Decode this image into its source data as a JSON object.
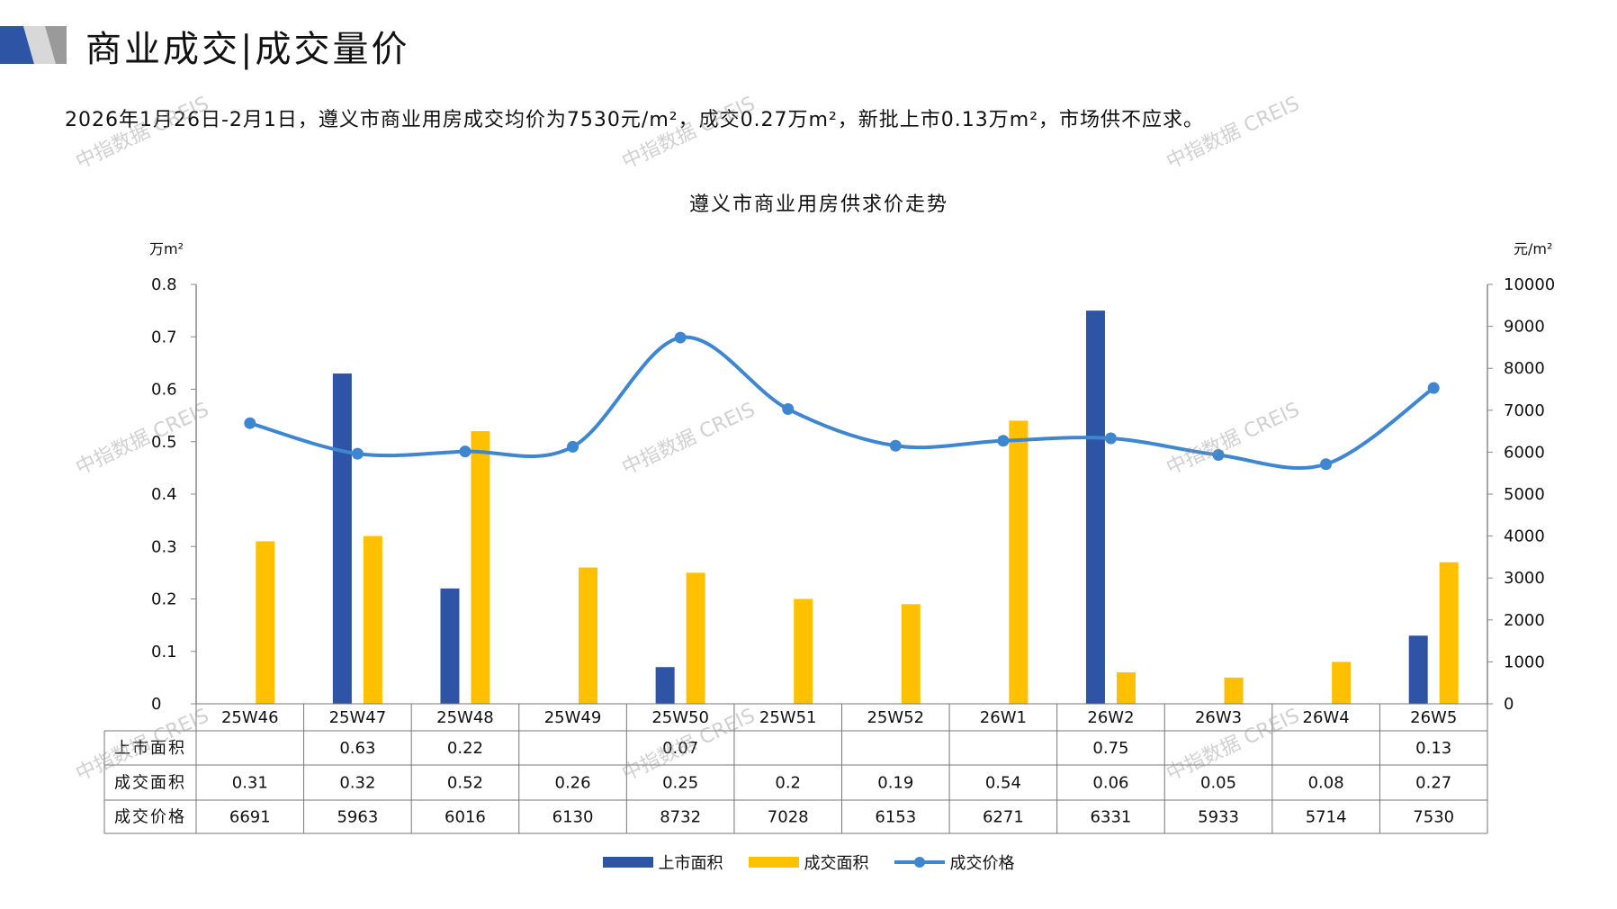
{
  "header": {
    "title": "商业成交|成交量价"
  },
  "summary": "2026年1月26日-2月1日，遵义市商业用房成交均价为7530元/m²，成交0.27万m²，新批上市0.13万m²，市场供不应求。",
  "watermark": "中指数据 CREIS",
  "colors": {
    "supply": "#2E55A5",
    "deal_area": "#FFC000",
    "price": "#3E86D0"
  },
  "chart_data": {
    "type": "bar",
    "title": "遵义市商业用房供求价走势",
    "ylabel": "万m²",
    "y2label": "元/m²",
    "ylim": [
      0,
      0.8
    ],
    "y2lim": [
      0,
      10000
    ],
    "yticks": [
      "0",
      "0.1",
      "0.2",
      "0.3",
      "0.4",
      "0.5",
      "0.6",
      "0.7",
      "0.8"
    ],
    "y2ticks": [
      "0",
      "1000",
      "2000",
      "3000",
      "4000",
      "5000",
      "6000",
      "7000",
      "8000",
      "9000",
      "10000"
    ],
    "categories": [
      "25W46",
      "25W47",
      "25W48",
      "25W49",
      "25W50",
      "25W51",
      "25W52",
      "26W1",
      "26W2",
      "26W3",
      "26W4",
      "26W5"
    ],
    "series": [
      {
        "name": "上市面积",
        "type": "bar",
        "axis": "left",
        "values": [
          null,
          0.63,
          0.22,
          null,
          0.07,
          null,
          null,
          null,
          0.75,
          null,
          null,
          0.13
        ],
        "labels": [
          "",
          "0.63",
          "0.22",
          "",
          "0.07",
          "",
          "",
          "",
          "0.75",
          "",
          "",
          "0.13"
        ]
      },
      {
        "name": "成交面积",
        "type": "bar",
        "axis": "left",
        "values": [
          0.31,
          0.32,
          0.52,
          0.26,
          0.25,
          0.2,
          0.19,
          0.54,
          0.06,
          0.05,
          0.08,
          0.27
        ],
        "labels": [
          "0.31",
          "0.32",
          "0.52",
          "0.26",
          "0.25",
          "0.2",
          "0.19",
          "0.54",
          "0.06",
          "0.05",
          "0.08",
          "0.27"
        ]
      },
      {
        "name": "成交价格",
        "type": "line",
        "axis": "right",
        "values": [
          6691,
          5963,
          6016,
          6130,
          8732,
          7028,
          6153,
          6271,
          6331,
          5933,
          5714,
          7530
        ],
        "labels": [
          "6691",
          "5963",
          "6016",
          "6130",
          "8732",
          "7028",
          "6153",
          "6271",
          "6331",
          "5933",
          "5714",
          "7530"
        ]
      }
    ],
    "legend": "bottom"
  }
}
